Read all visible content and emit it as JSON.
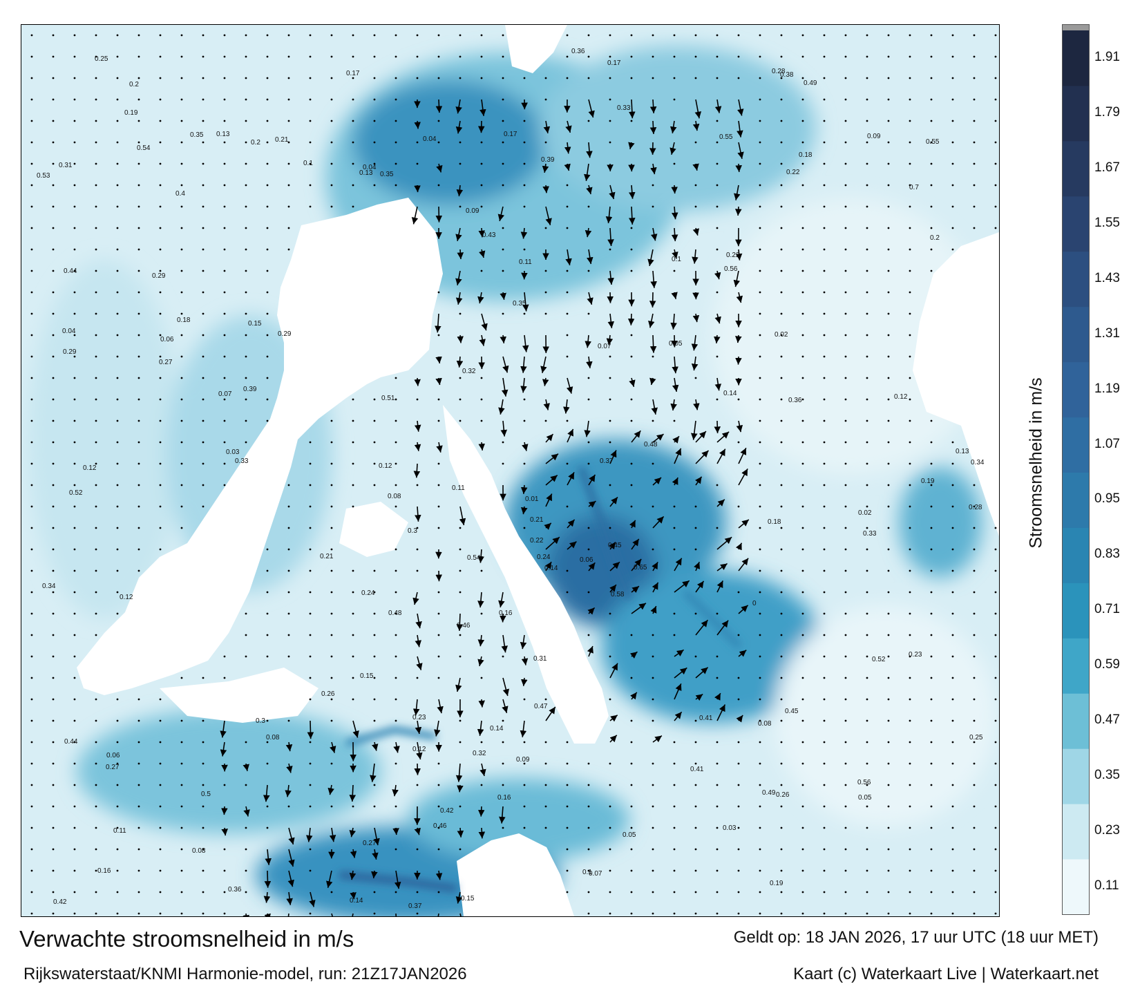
{
  "map": {
    "title": "Verwachte stroomsnelheid in m/s",
    "model_line": "Rijkswaterstaat/KNMI Harmonie-model, run: 21Z17JAN2026",
    "valid_line": "Geldt op: 18 JAN 2026, 17 uur UTC (18 uur MET)",
    "credit_line": "Kaart (c) Waterkaart Live | Waterkaart.net",
    "colorbar_label": "Stroomsnelheid in m/s",
    "colorbar_ticks": [
      "1.91",
      "1.79",
      "1.67",
      "1.55",
      "1.43",
      "1.31",
      "1.19",
      "1.07",
      "0.95",
      "0.83",
      "0.71",
      "0.59",
      "0.47",
      "0.35",
      "0.23",
      "0.11"
    ],
    "colorbar_colors": [
      "#eef8fb",
      "#cdeaf2",
      "#9fd6e6",
      "#6dbfd6",
      "#3fa6c8",
      "#2b93bb",
      "#2a85b2",
      "#2d7aab",
      "#2f6ea3",
      "#30639a",
      "#2e5a8e",
      "#2c4f80",
      "#2a4470",
      "#263a60",
      "#223050",
      "#1d2740"
    ],
    "speed_labels": [
      {
        "t": "0.11"
      },
      {
        "t": "0.12"
      },
      {
        "t": "0.14"
      },
      {
        "t": "0.15"
      },
      {
        "t": "0.13"
      },
      {
        "t": "0.16"
      },
      {
        "t": "0.08"
      },
      {
        "t": "0.06"
      },
      {
        "t": "0.12"
      },
      {
        "t": "0.25"
      },
      {
        "t": "0.35"
      },
      {
        "t": "0.34"
      },
      {
        "t": "0.33"
      },
      {
        "t": "0.04"
      },
      {
        "t": "0.05"
      },
      {
        "t": "0.21"
      },
      {
        "t": "0.18"
      },
      {
        "t": "0.35"
      },
      {
        "t": "0.46"
      },
      {
        "t": "0.41"
      },
      {
        "t": "0.36"
      },
      {
        "t": "0.48"
      },
      {
        "t": "0.51"
      },
      {
        "t": "0.29"
      },
      {
        "t": "0.22"
      },
      {
        "t": "0.27"
      },
      {
        "t": "0.29"
      },
      {
        "t": "0.3"
      },
      {
        "t": "0.14"
      },
      {
        "t": "0.19"
      },
      {
        "t": "0.21"
      },
      {
        "t": "0.17"
      },
      {
        "t": "0.11"
      },
      {
        "t": "0.08"
      },
      {
        "t": "0.1"
      },
      {
        "t": "0.09"
      },
      {
        "t": "0.07"
      },
      {
        "t": "0.15"
      },
      {
        "t": "0.26"
      },
      {
        "t": "0.24"
      },
      {
        "t": "0.12"
      },
      {
        "t": "0.13"
      },
      {
        "t": "0.18"
      },
      {
        "t": "0.2"
      },
      {
        "t": "0.23"
      },
      {
        "t": "0.28"
      },
      {
        "t": "0.31"
      },
      {
        "t": "0.45"
      },
      {
        "t": "0.52"
      },
      {
        "t": "0.49"
      },
      {
        "t": "0.55"
      },
      {
        "t": "0.65"
      },
      {
        "t": "0.7"
      },
      {
        "t": "0.58"
      },
      {
        "t": "0.54"
      },
      {
        "t": "0.41"
      },
      {
        "t": "0.37"
      },
      {
        "t": "0.36"
      },
      {
        "t": "0.32"
      },
      {
        "t": "0.42"
      },
      {
        "t": "0.44"
      },
      {
        "t": "0.39"
      },
      {
        "t": "0.33"
      },
      {
        "t": "0.35"
      },
      {
        "t": "0.43"
      },
      {
        "t": "0.34"
      },
      {
        "t": "0.3"
      },
      {
        "t": "0.27"
      },
      {
        "t": "0.25"
      },
      {
        "t": "0.22"
      },
      {
        "t": "0.2"
      },
      {
        "t": "0.19"
      },
      {
        "t": "0.17"
      },
      {
        "t": "0.16"
      },
      {
        "t": "0.14"
      },
      {
        "t": "0.12"
      },
      {
        "t": "0.1"
      },
      {
        "t": "0.09"
      },
      {
        "t": "0.08"
      },
      {
        "t": "0.07"
      },
      {
        "t": "0.06"
      },
      {
        "t": "0.05"
      },
      {
        "t": "0.04"
      },
      {
        "t": "0.03"
      },
      {
        "t": "0.02"
      },
      {
        "t": "0.01"
      },
      {
        "t": "0"
      },
      {
        "t": "0.47"
      },
      {
        "t": "0.56"
      },
      {
        "t": "0.53"
      },
      {
        "t": "0.5"
      },
      {
        "t": "0.48"
      },
      {
        "t": "0.45"
      },
      {
        "t": "0.4"
      },
      {
        "t": "0.38"
      },
      {
        "t": "0.32"
      },
      {
        "t": "0.28"
      },
      {
        "t": "0.26"
      },
      {
        "t": "0.24"
      },
      {
        "t": "0.23"
      },
      {
        "t": "0.21"
      },
      {
        "t": "0.18"
      },
      {
        "t": "0.15"
      },
      {
        "t": "0.13"
      },
      {
        "t": "0.11"
      },
      {
        "t": "0.2"
      },
      {
        "t": "0.22"
      },
      {
        "t": "0.17"
      },
      {
        "t": "0.14"
      },
      {
        "t": "0.12"
      },
      {
        "t": "0.1"
      },
      {
        "t": "0.09"
      },
      {
        "t": "0.06"
      },
      {
        "t": "0.05"
      },
      {
        "t": "0.04"
      },
      {
        "t": "0.03"
      },
      {
        "t": "0.02"
      },
      {
        "t": "0.07"
      },
      {
        "t": "0.08"
      },
      {
        "t": "0.16"
      },
      {
        "t": "0.19"
      },
      {
        "t": "0.27"
      },
      {
        "t": "0.29"
      },
      {
        "t": "0.31"
      },
      {
        "t": "0.33"
      },
      {
        "t": "0.36"
      },
      {
        "t": "0.37"
      },
      {
        "t": "0.39"
      },
      {
        "t": "0.42"
      },
      {
        "t": "0.44"
      },
      {
        "t": "0.46"
      },
      {
        "t": "0.49"
      },
      {
        "t": "0.52"
      },
      {
        "t": "0.54"
      },
      {
        "t": "0.55"
      },
      {
        "t": "0.56"
      }
    ]
  }
}
